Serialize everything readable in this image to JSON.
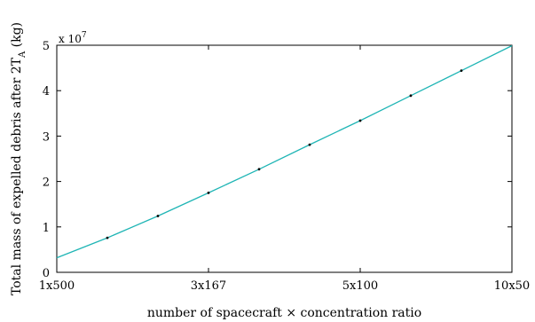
{
  "chart_data": {
    "type": "line",
    "xlabel": "number of spacecraft × concentration ratio",
    "ylabel_main": "Total mass of expelled debris after 2T",
    "ylabel_sub": "A",
    "ylabel_unit": " (kg)",
    "y_multiplier_base": "x 10",
    "y_multiplier_exp": "7",
    "xlim": [
      0,
      9
    ],
    "ylim": [
      0,
      5
    ],
    "x_ticks": [
      {
        "x": 0,
        "label": "1x500"
      },
      {
        "x": 3,
        "label": "3x167"
      },
      {
        "x": 6,
        "label": "5x100"
      },
      {
        "x": 9,
        "label": "10x50"
      }
    ],
    "y_ticks": [
      {
        "y": 0,
        "label": "0"
      },
      {
        "y": 1,
        "label": "1"
      },
      {
        "y": 2,
        "label": "2"
      },
      {
        "y": 3,
        "label": "3"
      },
      {
        "y": 4,
        "label": "4"
      },
      {
        "y": 5,
        "label": "5"
      }
    ],
    "series": [
      {
        "line_color": "#1fb5b5",
        "marker_color": "#000000",
        "x": [
          0,
          1,
          2,
          3,
          4,
          5,
          6,
          7,
          8,
          9
        ],
        "y": [
          0.32,
          0.76,
          1.24,
          1.75,
          2.27,
          2.81,
          3.34,
          3.89,
          4.44,
          4.99
        ]
      }
    ],
    "grid": false,
    "legend": "none"
  }
}
